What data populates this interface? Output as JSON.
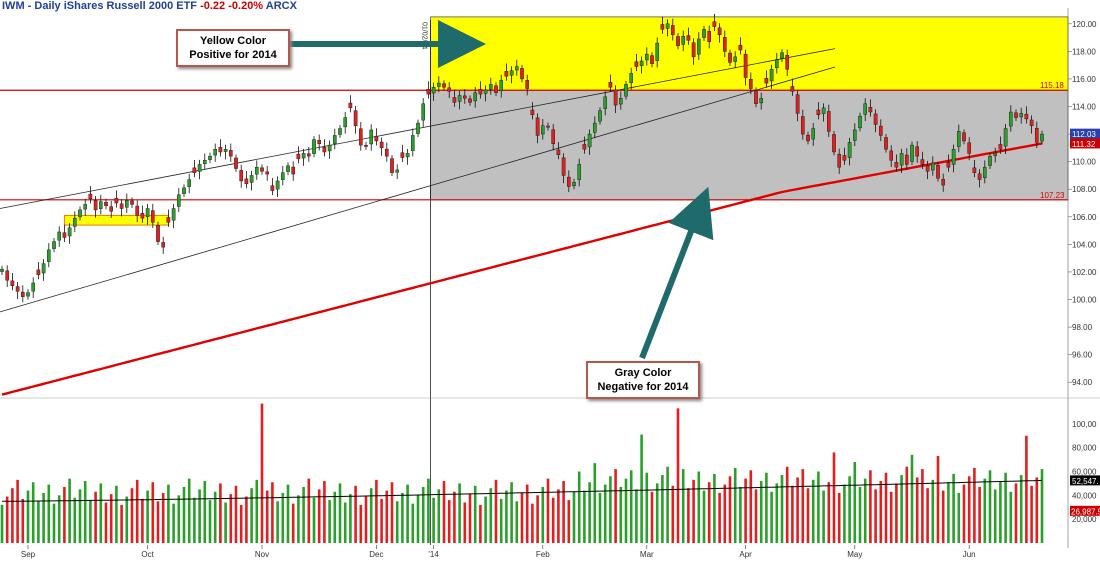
{
  "header": {
    "symbol": "IWM - Daily",
    "name": "iShares Russell 2000 ETF",
    "change": "-0.22",
    "change_pct": "-0.20%",
    "exchange": "ARCX"
  },
  "annotations": {
    "yellow": {
      "line1": "Yellow Color",
      "line2": "Positive for 2014"
    },
    "gray": {
      "line1": "Gray Color",
      "line2": "Negative for 2014"
    },
    "vertical_label": "01/02/14"
  },
  "colors": {
    "up": "#2aa02a",
    "down": "#e02020",
    "sma": "#e00000",
    "positive_zone": "#ffff00",
    "negative_zone": "#c0c0c0",
    "arrow": "#1f6a6a",
    "volume_avg": "#000000"
  },
  "icons": [
    "arrow-to-yellow-zone",
    "arrow-to-gray-zone"
  ],
  "chart_data": {
    "type": "candlestick",
    "price_axis": {
      "ticks": [
        "120.00",
        "118.00",
        "116.00",
        "114.00",
        "112.00",
        "110.00",
        "108.00",
        "106.00",
        "104.00",
        "102.00",
        "100.00",
        "98.00",
        "96.00",
        "94.00"
      ],
      "range": [
        93,
        121
      ]
    },
    "volume_axis": {
      "ticks": [
        "100,00",
        "80,000",
        "60,000",
        "40,000",
        "20,000"
      ],
      "range": [
        0,
        120000
      ]
    },
    "x_labels": [
      "Sep",
      "Oct",
      "Nov",
      "Dec",
      "'14",
      "Feb",
      "Mar",
      "Apr",
      "May",
      "Jun"
    ],
    "levels": [
      {
        "value": 115.18,
        "label": "115.18"
      },
      {
        "value": 107.23,
        "label": "107.23"
      }
    ],
    "last_price": {
      "value": 112.03,
      "label": "112.03"
    },
    "sma_last": {
      "value": 111.32,
      "label": "111.32"
    },
    "volume_avg_last": {
      "value": 52547,
      "label": "52,547."
    },
    "volume_last": {
      "value": 26987,
      "label": "26,987.5"
    },
    "closes": [
      102.2,
      101.4,
      101.0,
      100.6,
      100.2,
      100.5,
      101.2,
      101.8,
      102.6,
      103.6,
      104.2,
      104.9,
      104.5,
      105.2,
      105.9,
      106.5,
      106.9,
      107.3,
      106.5,
      107.1,
      106.8,
      106.4,
      107.0,
      106.6,
      107.2,
      106.9,
      106.1,
      105.9,
      106.6,
      105.6,
      104.2,
      103.8,
      105.6,
      106.6,
      107.6,
      108.1,
      108.7,
      109.2,
      109.8,
      110.1,
      110.4,
      110.9,
      110.7,
      110.9,
      110.4,
      109.5,
      108.6,
      108.4,
      109.0,
      109.6,
      109.3,
      109.1,
      107.9,
      108.6,
      109.2,
      109.7,
      109.1,
      110.2,
      110.6,
      110.4,
      111.6,
      111.3,
      110.7,
      111.2,
      111.9,
      112.4,
      113.2,
      113.9,
      112.6,
      111.2,
      111.1,
      112.3,
      111.5,
      111.0,
      110.4,
      109.2,
      109.4,
      110.3,
      110.6,
      111.9,
      112.8,
      114.2,
      114.9,
      115.4,
      115.7,
      115.4,
      115.1,
      114.3,
      114.8,
      114.6,
      114.3,
      115.0,
      114.9,
      115.2,
      115.6,
      115.0,
      115.9,
      116.2,
      116.6,
      116.9,
      116.0,
      115.3,
      113.4,
      111.9,
      112.6,
      112.5,
      111.3,
      110.5,
      109.0,
      108.2,
      108.5,
      109.8,
      110.9,
      112.0,
      112.8,
      113.7,
      114.7,
      115.4,
      114.1,
      114.6,
      115.6,
      116.4,
      116.9,
      117.3,
      117.8,
      117.1,
      118.6,
      119.6,
      120.0,
      119.2,
      118.4,
      119.1,
      118.8,
      117.6,
      118.9,
      119.6,
      118.7,
      119.8,
      119.2,
      118.0,
      117.2,
      117.6,
      118.1,
      116.1,
      115.3,
      114.2,
      114.6,
      115.7,
      116.7,
      117.4,
      117.9,
      116.7,
      115.1,
      113.5,
      112.0,
      111.5,
      112.4,
      113.4,
      113.9,
      112.2,
      110.7,
      109.6,
      110.1,
      111.4,
      112.3,
      113.3,
      114.2,
      113.6,
      112.7,
      111.9,
      110.9,
      110.1,
      109.6,
      110.6,
      109.8,
      111.2,
      110.4,
      109.8,
      109.3,
      109.9,
      108.8,
      108.3,
      109.6,
      110.9,
      112.2,
      111.5,
      110.6,
      109.2,
      108.7,
      109.6,
      110.4,
      110.6,
      110.9,
      112.4,
      113.6,
      113.2,
      113.5,
      113.1,
      112.6,
      111.4,
      112.0
    ]
  }
}
